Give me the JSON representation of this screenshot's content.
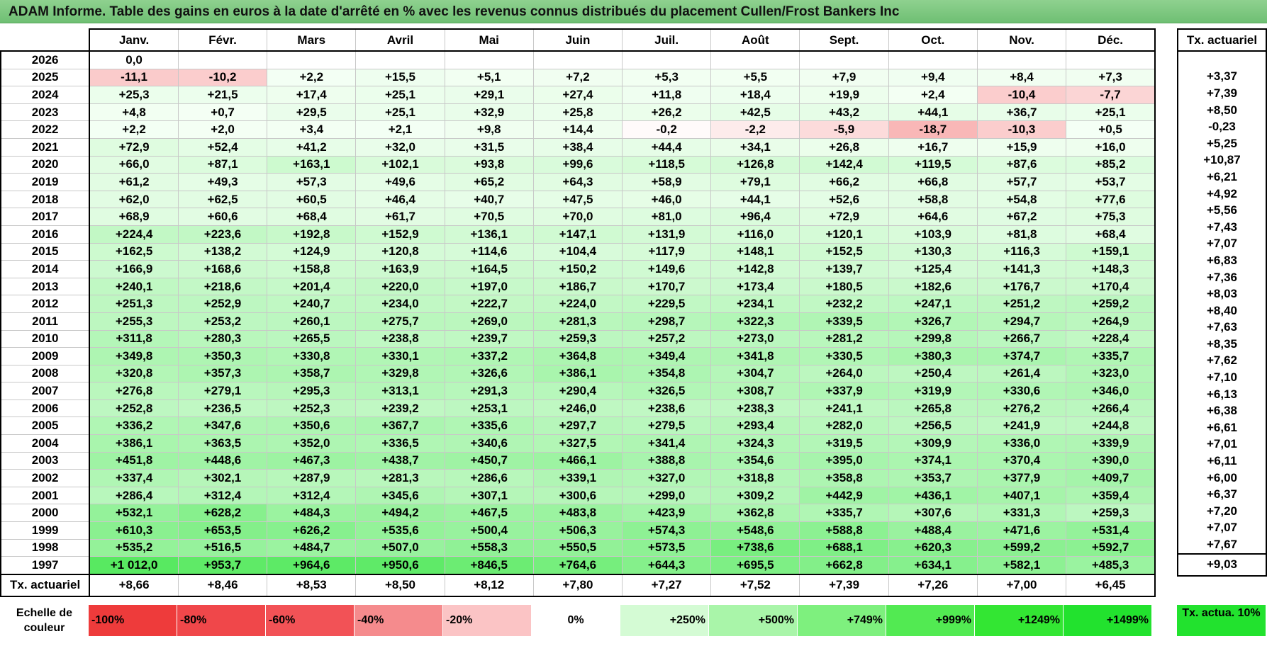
{
  "title": "ADAM Informe. Table des gains en euros à la date d'arrêté en % avec les revenus connus distribués du placement Cullen/Frost Bankers Inc",
  "months": [
    "Janv.",
    "Févr.",
    "Mars",
    "Avril",
    "Mai",
    "Juin",
    "Juil.",
    "Août",
    "Sept.",
    "Oct.",
    "Nov.",
    "Déc."
  ],
  "side_header": "Tx. actuariel",
  "rows": [
    {
      "year": "2026",
      "values": [
        "0,0",
        "",
        "",
        "",
        "",
        "",
        "",
        "",
        "",
        "",
        "",
        ""
      ],
      "tx": ""
    },
    {
      "year": "2025",
      "values": [
        "-11,1",
        "-10,2",
        "+2,2",
        "+15,5",
        "+5,1",
        "+7,2",
        "+5,3",
        "+5,5",
        "+7,9",
        "+9,4",
        "+8,4",
        "+7,3"
      ],
      "tx": "+3,37"
    },
    {
      "year": "2024",
      "values": [
        "+25,3",
        "+21,5",
        "+17,4",
        "+25,1",
        "+29,1",
        "+27,4",
        "+11,8",
        "+18,4",
        "+19,9",
        "+2,4",
        "-10,4",
        "-7,7"
      ],
      "tx": "+7,39"
    },
    {
      "year": "2023",
      "values": [
        "+4,8",
        "+0,7",
        "+29,5",
        "+25,1",
        "+32,9",
        "+25,8",
        "+26,2",
        "+42,5",
        "+43,2",
        "+44,1",
        "+36,7",
        "+25,1"
      ],
      "tx": "+8,50"
    },
    {
      "year": "2022",
      "values": [
        "+2,2",
        "+2,0",
        "+3,4",
        "+2,1",
        "+9,8",
        "+14,4",
        "-0,2",
        "-2,2",
        "-5,9",
        "-18,7",
        "-10,3",
        "+0,5"
      ],
      "tx": "-0,23"
    },
    {
      "year": "2021",
      "values": [
        "+72,9",
        "+52,4",
        "+41,2",
        "+32,0",
        "+31,5",
        "+38,4",
        "+44,4",
        "+34,1",
        "+26,8",
        "+16,7",
        "+15,9",
        "+16,0"
      ],
      "tx": "+5,25"
    },
    {
      "year": "2020",
      "values": [
        "+66,0",
        "+87,1",
        "+163,1",
        "+102,1",
        "+93,8",
        "+99,6",
        "+118,5",
        "+126,8",
        "+142,4",
        "+119,5",
        "+87,6",
        "+85,2"
      ],
      "tx": "+10,87"
    },
    {
      "year": "2019",
      "values": [
        "+61,2",
        "+49,3",
        "+57,3",
        "+49,6",
        "+65,2",
        "+64,3",
        "+58,9",
        "+79,1",
        "+66,2",
        "+66,8",
        "+57,7",
        "+53,7"
      ],
      "tx": "+6,21"
    },
    {
      "year": "2018",
      "values": [
        "+62,0",
        "+62,5",
        "+60,5",
        "+46,4",
        "+40,7",
        "+47,5",
        "+46,0",
        "+44,1",
        "+52,6",
        "+58,8",
        "+54,8",
        "+77,6"
      ],
      "tx": "+4,92"
    },
    {
      "year": "2017",
      "values": [
        "+68,9",
        "+60,6",
        "+68,4",
        "+61,7",
        "+70,5",
        "+70,0",
        "+81,0",
        "+96,4",
        "+72,9",
        "+64,6",
        "+67,2",
        "+75,3"
      ],
      "tx": "+5,56"
    },
    {
      "year": "2016",
      "values": [
        "+224,4",
        "+223,6",
        "+192,8",
        "+152,9",
        "+136,1",
        "+147,1",
        "+131,9",
        "+116,0",
        "+120,1",
        "+103,9",
        "+81,8",
        "+68,4"
      ],
      "tx": "+7,43"
    },
    {
      "year": "2015",
      "values": [
        "+162,5",
        "+138,2",
        "+124,9",
        "+120,8",
        "+114,6",
        "+104,4",
        "+117,9",
        "+148,1",
        "+152,5",
        "+130,3",
        "+116,3",
        "+159,1"
      ],
      "tx": "+7,07"
    },
    {
      "year": "2014",
      "values": [
        "+166,9",
        "+168,6",
        "+158,8",
        "+163,9",
        "+164,5",
        "+150,2",
        "+149,6",
        "+142,8",
        "+139,7",
        "+125,4",
        "+141,3",
        "+148,3"
      ],
      "tx": "+6,83"
    },
    {
      "year": "2013",
      "values": [
        "+240,1",
        "+218,6",
        "+201,4",
        "+220,0",
        "+197,0",
        "+186,7",
        "+170,7",
        "+173,4",
        "+180,5",
        "+182,6",
        "+176,7",
        "+170,4"
      ],
      "tx": "+7,36"
    },
    {
      "year": "2012",
      "values": [
        "+251,3",
        "+252,9",
        "+240,7",
        "+234,0",
        "+222,7",
        "+224,0",
        "+229,5",
        "+234,1",
        "+232,2",
        "+247,1",
        "+251,2",
        "+259,2"
      ],
      "tx": "+8,03"
    },
    {
      "year": "2011",
      "values": [
        "+255,3",
        "+253,2",
        "+260,1",
        "+275,7",
        "+269,0",
        "+281,3",
        "+298,7",
        "+322,3",
        "+339,5",
        "+326,7",
        "+294,7",
        "+264,9"
      ],
      "tx": "+8,40"
    },
    {
      "year": "2010",
      "values": [
        "+311,8",
        "+280,3",
        "+265,5",
        "+238,8",
        "+239,7",
        "+259,3",
        "+257,2",
        "+273,0",
        "+281,2",
        "+299,8",
        "+266,7",
        "+228,4"
      ],
      "tx": "+7,63"
    },
    {
      "year": "2009",
      "values": [
        "+349,8",
        "+350,3",
        "+330,8",
        "+330,1",
        "+337,2",
        "+364,8",
        "+349,4",
        "+341,8",
        "+330,5",
        "+380,3",
        "+374,7",
        "+335,7"
      ],
      "tx": "+8,35"
    },
    {
      "year": "2008",
      "values": [
        "+320,8",
        "+357,3",
        "+358,7",
        "+329,8",
        "+326,6",
        "+386,1",
        "+354,8",
        "+304,7",
        "+264,0",
        "+250,4",
        "+261,4",
        "+323,0"
      ],
      "tx": "+7,62"
    },
    {
      "year": "2007",
      "values": [
        "+276,8",
        "+279,1",
        "+295,3",
        "+313,1",
        "+291,3",
        "+290,4",
        "+326,5",
        "+308,7",
        "+337,9",
        "+319,9",
        "+330,6",
        "+346,0"
      ],
      "tx": "+7,10"
    },
    {
      "year": "2006",
      "values": [
        "+252,8",
        "+236,5",
        "+252,3",
        "+239,2",
        "+253,1",
        "+246,0",
        "+238,6",
        "+238,3",
        "+241,1",
        "+265,8",
        "+276,2",
        "+266,4"
      ],
      "tx": "+6,13"
    },
    {
      "year": "2005",
      "values": [
        "+336,2",
        "+347,6",
        "+350,6",
        "+367,7",
        "+335,6",
        "+297,7",
        "+279,5",
        "+293,4",
        "+282,0",
        "+256,5",
        "+241,9",
        "+244,8"
      ],
      "tx": "+6,38"
    },
    {
      "year": "2004",
      "values": [
        "+386,1",
        "+363,5",
        "+352,0",
        "+336,5",
        "+340,6",
        "+327,5",
        "+341,4",
        "+324,3",
        "+319,5",
        "+309,9",
        "+336,0",
        "+339,9"
      ],
      "tx": "+6,61"
    },
    {
      "year": "2003",
      "values": [
        "+451,8",
        "+448,6",
        "+467,3",
        "+438,7",
        "+450,7",
        "+466,1",
        "+388,8",
        "+354,6",
        "+395,0",
        "+374,1",
        "+370,4",
        "+390,0"
      ],
      "tx": "+7,01"
    },
    {
      "year": "2002",
      "values": [
        "+337,4",
        "+302,1",
        "+287,9",
        "+281,3",
        "+286,6",
        "+339,1",
        "+327,0",
        "+318,8",
        "+358,8",
        "+353,7",
        "+377,9",
        "+409,7"
      ],
      "tx": "+6,11"
    },
    {
      "year": "2001",
      "values": [
        "+286,4",
        "+312,4",
        "+312,4",
        "+345,6",
        "+307,1",
        "+300,6",
        "+299,0",
        "+309,2",
        "+442,9",
        "+436,1",
        "+407,1",
        "+359,4"
      ],
      "tx": "+6,00"
    },
    {
      "year": "2000",
      "values": [
        "+532,1",
        "+628,2",
        "+484,3",
        "+494,2",
        "+467,5",
        "+483,8",
        "+423,9",
        "+362,8",
        "+335,7",
        "+307,6",
        "+331,3",
        "+259,3"
      ],
      "tx": "+6,37"
    },
    {
      "year": "1999",
      "values": [
        "+610,3",
        "+653,5",
        "+626,2",
        "+535,6",
        "+500,4",
        "+506,3",
        "+574,3",
        "+548,6",
        "+588,8",
        "+488,4",
        "+471,6",
        "+531,4"
      ],
      "tx": "+7,20"
    },
    {
      "year": "1998",
      "values": [
        "+535,2",
        "+516,5",
        "+484,7",
        "+507,0",
        "+558,3",
        "+550,5",
        "+573,5",
        "+738,6",
        "+688,1",
        "+620,3",
        "+599,2",
        "+592,7"
      ],
      "tx": "+7,07"
    },
    {
      "year": "1997",
      "values": [
        "+1 012,0",
        "+953,7",
        "+964,6",
        "+950,6",
        "+846,5",
        "+764,6",
        "+644,3",
        "+695,5",
        "+662,8",
        "+634,1",
        "+582,1",
        "+485,3"
      ],
      "tx": "+7,67"
    }
  ],
  "footer": {
    "label": "Tx. actuariel",
    "values": [
      "+8,66",
      "+8,46",
      "+8,53",
      "+8,50",
      "+8,12",
      "+7,80",
      "+7,27",
      "+7,52",
      "+7,39",
      "+7,26",
      "+7,00",
      "+6,45"
    ],
    "tx": "+9,03"
  },
  "legend": {
    "label": "Echelle de couleur",
    "steps": [
      {
        "text": "-100%",
        "color": "#ee3b3b"
      },
      {
        "text": "-80%",
        "color": "#f0474a"
      },
      {
        "text": "-60%",
        "color": "#f25256"
      },
      {
        "text": "-40%",
        "color": "#f58b8d"
      },
      {
        "text": "-20%",
        "color": "#fbc4c5"
      },
      {
        "text": "0%",
        "color": "#ffffff"
      },
      {
        "text": "+250%",
        "color": "#d4fbd4"
      },
      {
        "text": "+500%",
        "color": "#a9f5a9"
      },
      {
        "text": "+749%",
        "color": "#7ef07e"
      },
      {
        "text": "+999%",
        "color": "#52ea52"
      },
      {
        "text": "+1249%",
        "color": "#33e633"
      },
      {
        "text": "+1499%",
        "color": "#22e22e"
      }
    ],
    "tx_label": "Tx. actua. 10%"
  }
}
